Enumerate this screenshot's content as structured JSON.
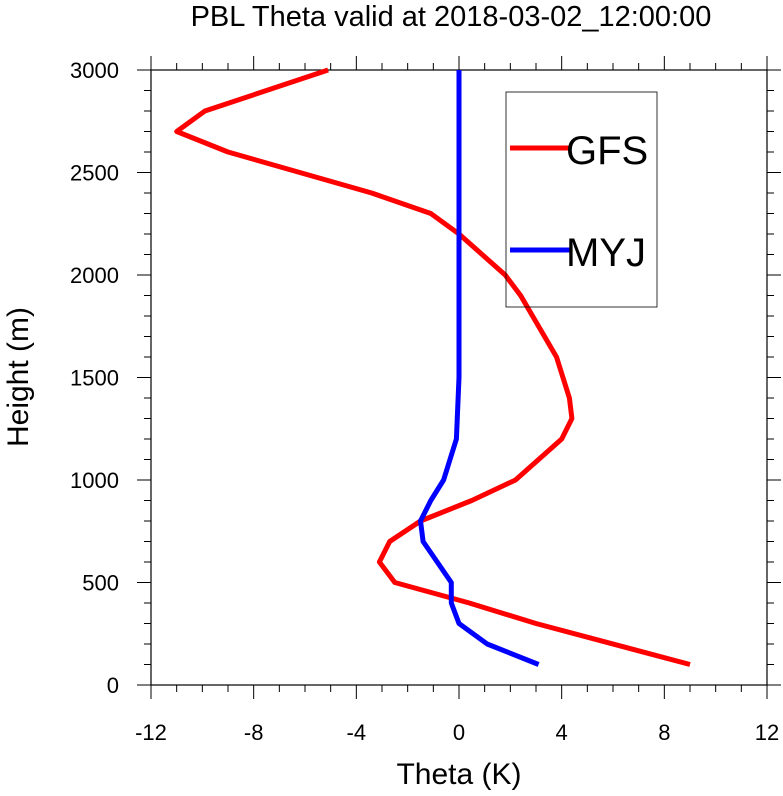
{
  "chart_data": {
    "type": "line",
    "title": "PBL Theta valid at 2018-03-02_12:00:00",
    "xlabel": "Theta (K)",
    "ylabel": "Height (m)",
    "xlim": [
      -12,
      12
    ],
    "ylim": [
      0,
      3000
    ],
    "x_ticks": [
      -12,
      -8,
      -4,
      0,
      4,
      8,
      12
    ],
    "y_ticks": [
      0,
      500,
      1000,
      1500,
      2000,
      2500,
      3000
    ],
    "x_tick_labels": [
      "-12",
      "-8",
      "-4",
      "0",
      "4",
      "8",
      "12"
    ],
    "y_tick_labels": [
      "0",
      "500",
      "1000",
      "1500",
      "2000",
      "2500",
      "3000"
    ],
    "grid": false,
    "legend_position": "top-right",
    "series": [
      {
        "name": "GFS",
        "color": "#ff0000",
        "x": [
          9.0,
          3.0,
          0.4,
          -2.5,
          -3.1,
          -2.7,
          -1.5,
          0.5,
          2.2,
          4.0,
          4.4,
          4.3,
          3.8,
          2.4,
          1.8,
          0.0,
          -1.1,
          -3.4,
          -9.0,
          -11.0,
          -9.9,
          -5.1
        ],
        "y": [
          100,
          300,
          400,
          500,
          600,
          700,
          800,
          900,
          1000,
          1200,
          1300,
          1400,
          1600,
          1900,
          2000,
          2200,
          2300,
          2400,
          2600,
          2700,
          2800,
          3000
        ]
      },
      {
        "name": "MYJ",
        "color": "#0000ff",
        "x": [
          3.1,
          1.1,
          0.0,
          -0.3,
          -0.3,
          -1.4,
          -1.5,
          -1.1,
          -0.6,
          -0.1,
          0.0,
          0.0,
          0.0,
          0.0
        ],
        "y": [
          100,
          200,
          300,
          400,
          500,
          700,
          800,
          900,
          1000,
          1200,
          1500,
          2000,
          2500,
          3000
        ]
      }
    ]
  }
}
